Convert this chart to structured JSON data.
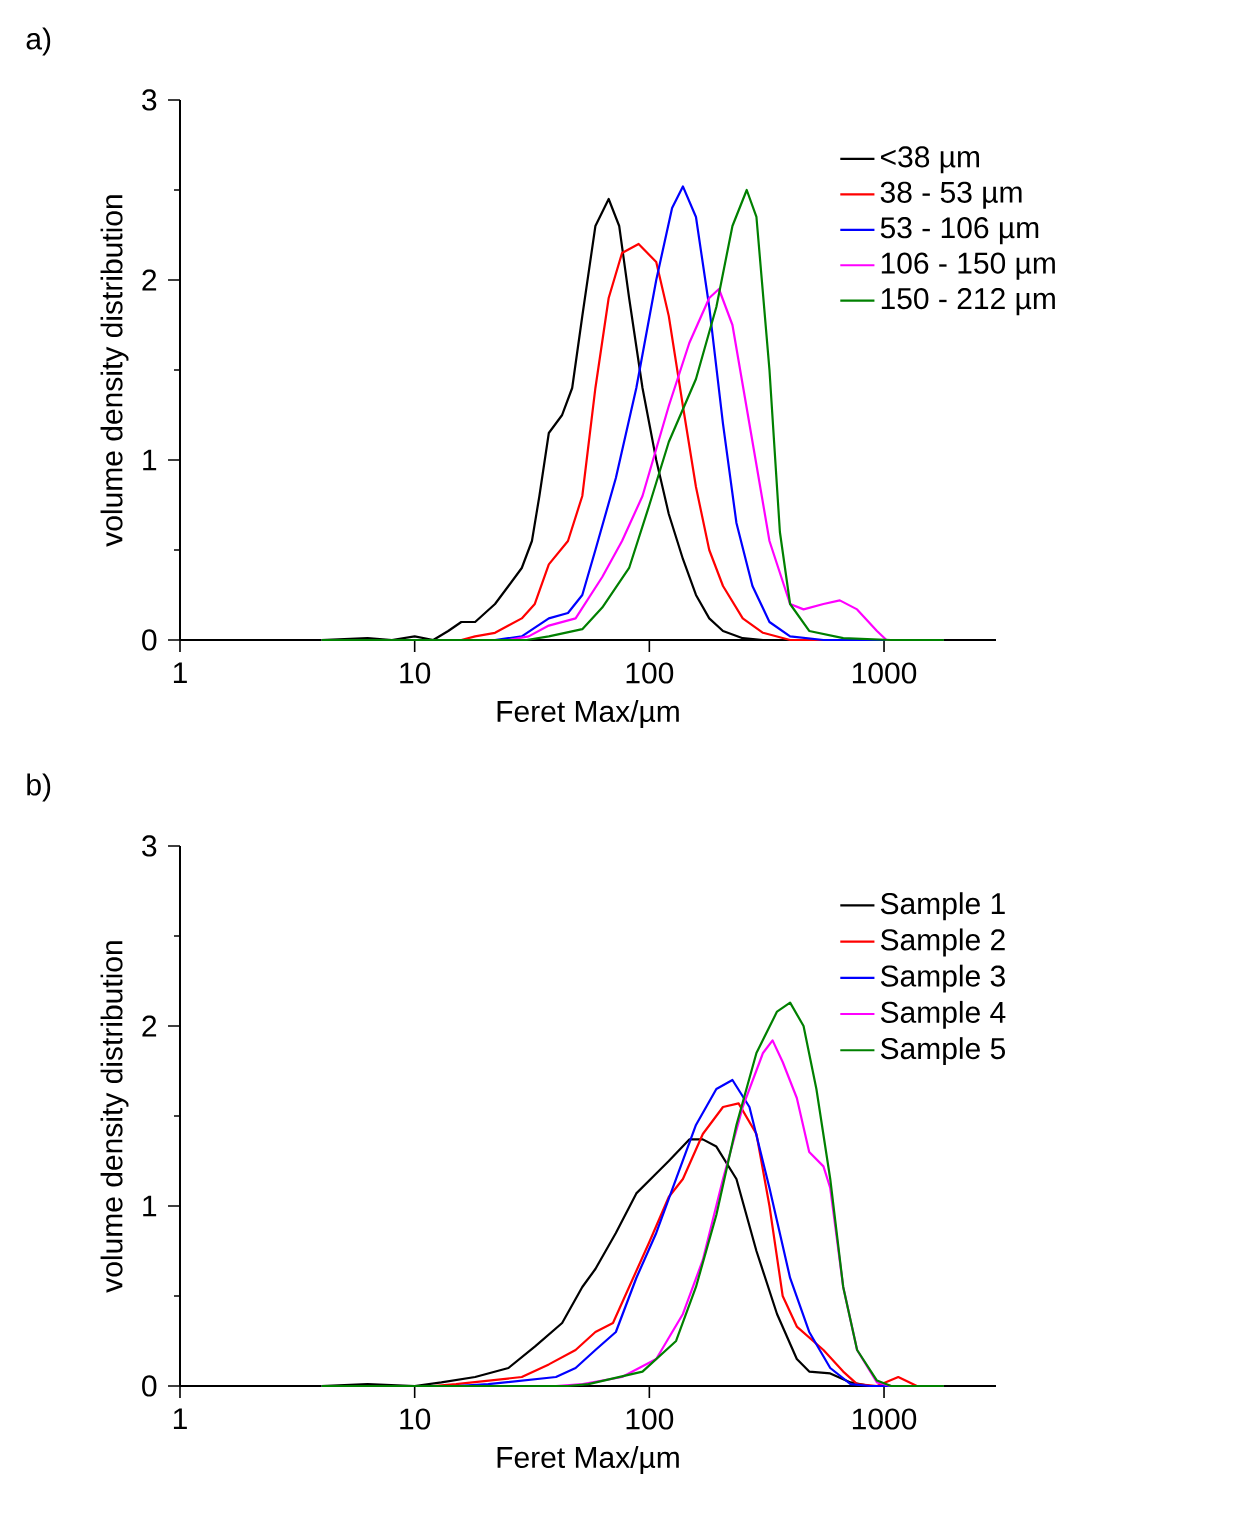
{
  "chart_data": [
    {
      "type": "line",
      "annotations": [
        "a)"
      ],
      "xlabel": "Feret Max/µm",
      "ylabel": "volume density distribution",
      "log": "x",
      "xlim": [
        1,
        3000
      ],
      "ylim": [
        0,
        3
      ],
      "xticks": [
        1,
        10,
        100,
        1000
      ],
      "yticks": [
        0,
        1,
        2,
        3
      ],
      "legend": "top right",
      "marker": "none",
      "line_style": "solid",
      "series": [
        {
          "name": "<38 µm",
          "color": "#000000",
          "x": [
            4,
            6.3,
            8,
            10,
            12,
            13.9,
            15.8,
            18.1,
            22,
            25.1,
            28.6,
            31.6,
            34,
            37.3,
            42.5,
            46.9,
            51.8,
            58.9,
            67.1,
            74.4,
            82,
            93.5,
            107,
            121,
            139,
            158,
            180,
            206,
            250,
            305,
            1800
          ],
          "values": [
            0,
            0.01,
            0,
            0.02,
            0,
            0.05,
            0.1,
            0.1,
            0.2,
            0.3,
            0.4,
            0.55,
            0.8,
            1.15,
            1.25,
            1.4,
            1.8,
            2.3,
            2.45,
            2.3,
            1.9,
            1.4,
            1.0,
            0.7,
            0.45,
            0.25,
            0.12,
            0.05,
            0.01,
            0,
            0
          ]
        },
        {
          "name": "38 - 53 µm",
          "color": "#ff0000",
          "x": [
            4,
            15.8,
            18.1,
            22,
            25.1,
            28.6,
            32.5,
            37.3,
            45,
            51.8,
            58.9,
            67.1,
            76.5,
            90,
            107,
            121,
            139,
            158,
            180,
            206,
            250,
            305,
            398,
            1800
          ],
          "values": [
            0,
            0,
            0.02,
            0.04,
            0.08,
            0.12,
            0.2,
            0.42,
            0.55,
            0.8,
            1.4,
            1.9,
            2.15,
            2.2,
            2.1,
            1.8,
            1.3,
            0.85,
            0.5,
            0.3,
            0.12,
            0.04,
            0,
            0
          ]
        },
        {
          "name": "53 - 106 µm",
          "color": "#0000ff",
          "x": [
            4,
            22,
            28.6,
            37.3,
            45,
            51.8,
            58.9,
            72,
            88,
            107,
            125,
            139,
            158,
            180,
            206,
            235,
            275,
            325,
            398,
            552,
            1800
          ],
          "values": [
            0,
            0,
            0.02,
            0.12,
            0.15,
            0.25,
            0.5,
            0.9,
            1.4,
            2.0,
            2.4,
            2.52,
            2.35,
            1.85,
            1.2,
            0.65,
            0.3,
            0.1,
            0.02,
            0,
            0
          ]
        },
        {
          "name": "106 - 150 µm",
          "color": "#ff00ff",
          "x": [
            4,
            25,
            30.6,
            37.3,
            48.5,
            63,
            76.5,
            93.5,
            121,
            148,
            180,
            198,
            226,
            267,
            325,
            398,
            454,
            552,
            648,
            768,
            933,
            1024,
            1800
          ],
          "values": [
            0,
            0,
            0.02,
            0.08,
            0.12,
            0.35,
            0.55,
            0.8,
            1.3,
            1.65,
            1.9,
            1.95,
            1.75,
            1.2,
            0.55,
            0.2,
            0.17,
            0.2,
            0.22,
            0.17,
            0.05,
            0,
            0
          ]
        },
        {
          "name": "150 - 212 µm",
          "color": "#008000",
          "x": [
            4,
            30,
            37.3,
            51.8,
            63,
            82,
            100,
            121,
            158,
            193,
            226,
            260,
            286,
            325,
            360,
            398,
            480,
            670,
            1072,
            1800
          ],
          "values": [
            0,
            0,
            0.02,
            0.06,
            0.18,
            0.4,
            0.75,
            1.1,
            1.45,
            1.85,
            2.3,
            2.5,
            2.35,
            1.5,
            0.6,
            0.2,
            0.05,
            0.01,
            0,
            0
          ]
        }
      ]
    },
    {
      "type": "line",
      "annotations": [
        "b)"
      ],
      "xlabel": "Feret Max/µm",
      "ylabel": "volume density distribution",
      "log": "x",
      "xlim": [
        1,
        3000
      ],
      "ylim": [
        0,
        3
      ],
      "xticks": [
        1,
        10,
        100,
        1000
      ],
      "yticks": [
        0,
        1,
        2,
        3
      ],
      "legend": "top right",
      "marker": "none",
      "line_style": "solid",
      "series": [
        {
          "name": "Sample 1",
          "color": "#000000",
          "x": [
            4,
            6.3,
            10,
            13,
            18.1,
            25.1,
            32.6,
            42.5,
            51.8,
            58.9,
            72,
            88,
            107,
            121,
            148,
            169,
            193,
            235,
            286,
            350,
            425,
            480,
            590,
            720,
            875,
            1800
          ],
          "values": [
            0,
            0.01,
            0,
            0.02,
            0.05,
            0.1,
            0.22,
            0.35,
            0.55,
            0.65,
            0.85,
            1.07,
            1.18,
            1.25,
            1.37,
            1.37,
            1.33,
            1.15,
            0.75,
            0.4,
            0.15,
            0.08,
            0.07,
            0.02,
            0,
            0
          ]
        },
        {
          "name": "Sample 2",
          "color": "#ff0000",
          "x": [
            4,
            12,
            15,
            28.6,
            37.3,
            48.5,
            58.9,
            70,
            82,
            100,
            121,
            139,
            169,
            206,
            240,
            286,
            325,
            370,
            425,
            552,
            670,
            768,
            933,
            1150,
            1380,
            1800
          ],
          "values": [
            0,
            0,
            0.01,
            0.05,
            0.12,
            0.2,
            0.3,
            0.35,
            0.55,
            0.8,
            1.05,
            1.15,
            1.4,
            1.55,
            1.57,
            1.4,
            1.0,
            0.5,
            0.33,
            0.2,
            0.08,
            0.01,
            0,
            0.05,
            0,
            0
          ]
        },
        {
          "name": "Sample 3",
          "color": "#0000ff",
          "x": [
            4,
            15,
            20.6,
            40,
            48.5,
            58.9,
            72,
            88,
            107,
            130,
            158,
            193,
            226,
            267,
            325,
            398,
            480,
            590,
            720,
            875,
            1800
          ],
          "values": [
            0,
            0,
            0.01,
            0.05,
            0.1,
            0.2,
            0.3,
            0.6,
            0.85,
            1.15,
            1.45,
            1.65,
            1.7,
            1.55,
            1.1,
            0.6,
            0.3,
            0.1,
            0.01,
            0,
            0
          ]
        },
        {
          "name": "Sample 4",
          "color": "#ff00ff",
          "x": [
            4,
            40,
            52,
            76.5,
            107,
            139,
            169,
            206,
            250,
            305,
            335,
            370,
            425,
            480,
            552,
            590,
            670,
            768,
            933,
            1072,
            1800
          ],
          "values": [
            0,
            0,
            0.01,
            0.05,
            0.15,
            0.4,
            0.7,
            1.15,
            1.55,
            1.85,
            1.92,
            1.8,
            1.6,
            1.3,
            1.22,
            1.1,
            0.55,
            0.2,
            0.02,
            0,
            0
          ]
        },
        {
          "name": "Sample 5",
          "color": "#008000",
          "x": [
            4,
            45,
            55,
            93.5,
            130,
            158,
            193,
            235,
            286,
            350,
            398,
            454,
            515,
            590,
            670,
            768,
            933,
            1072,
            1800
          ],
          "values": [
            0,
            0,
            0.01,
            0.08,
            0.25,
            0.55,
            0.95,
            1.45,
            1.85,
            2.08,
            2.13,
            2.0,
            1.65,
            1.15,
            0.55,
            0.2,
            0.03,
            0,
            0
          ]
        }
      ]
    }
  ]
}
